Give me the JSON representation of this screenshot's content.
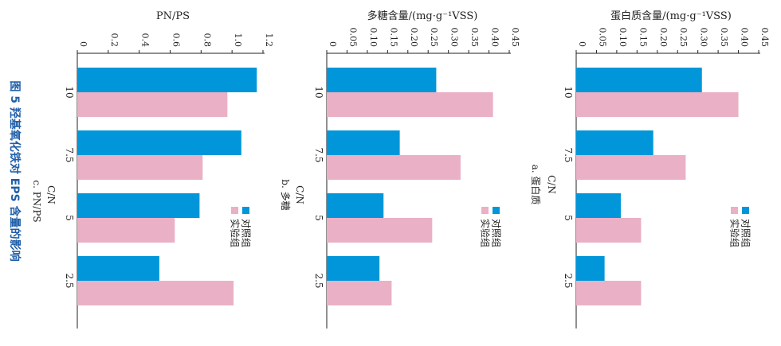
{
  "figure_caption": "图 5   羟基氧化铁对 EPS 含量的影响",
  "colors": {
    "control": "#0096d9",
    "experiment": "#eab0c6",
    "axis": "#222222",
    "caption": "#1f5fa8"
  },
  "chart_data": [
    {
      "type": "bar",
      "title": "蛋白质含量/(mg·g⁻¹VSS)",
      "xlabel": "C/N",
      "sublabel": "a. 蛋白质",
      "categories": [
        "10",
        "7.5",
        "5",
        "2.5"
      ],
      "ylim": [
        0,
        0.45
      ],
      "ticks": [
        "0",
        "0.05",
        "0.10",
        "0.15",
        "0.20",
        "0.25",
        "0.30",
        "0.35",
        "0.40",
        "0.45"
      ],
      "series": [
        {
          "name": "对照组",
          "values": [
            0.31,
            0.19,
            0.11,
            0.07
          ]
        },
        {
          "name": "实验组",
          "values": [
            0.4,
            0.27,
            0.16,
            0.16
          ]
        }
      ],
      "legend": [
        "对照组",
        "实验组"
      ]
    },
    {
      "type": "bar",
      "title": "多糖含量/(mg·g⁻¹VSS)",
      "xlabel": "C/N",
      "sublabel": "b. 多糖",
      "categories": [
        "10",
        "7.5",
        "5",
        "2.5"
      ],
      "ylim": [
        0,
        0.45
      ],
      "ticks": [
        "0",
        "0.05",
        "0.10",
        "0.15",
        "0.20",
        "0.25",
        "0.30",
        "0.35",
        "0.40",
        "0.45"
      ],
      "series": [
        {
          "name": "对照组",
          "values": [
            0.27,
            0.18,
            0.14,
            0.13
          ]
        },
        {
          "name": "实验组",
          "values": [
            0.41,
            0.33,
            0.26,
            0.16
          ]
        }
      ],
      "legend": [
        "对照组",
        "实验组"
      ]
    },
    {
      "type": "bar",
      "title": "PN/PS",
      "xlabel": "C/N",
      "sublabel": "c. PN/PS",
      "categories": [
        "10",
        "7.5",
        "5",
        "2.5"
      ],
      "ylim": [
        0,
        1.2
      ],
      "ticks": [
        "0",
        "0.2",
        "0.4",
        "0.6",
        "0.8",
        "1.0",
        "1.2"
      ],
      "series": [
        {
          "name": "对照组",
          "values": [
            1.16,
            1.06,
            0.79,
            0.53
          ]
        },
        {
          "name": "实验组",
          "values": [
            0.97,
            0.81,
            0.63,
            1.01
          ]
        }
      ],
      "legend": [
        "对照组",
        "实验组"
      ]
    }
  ]
}
